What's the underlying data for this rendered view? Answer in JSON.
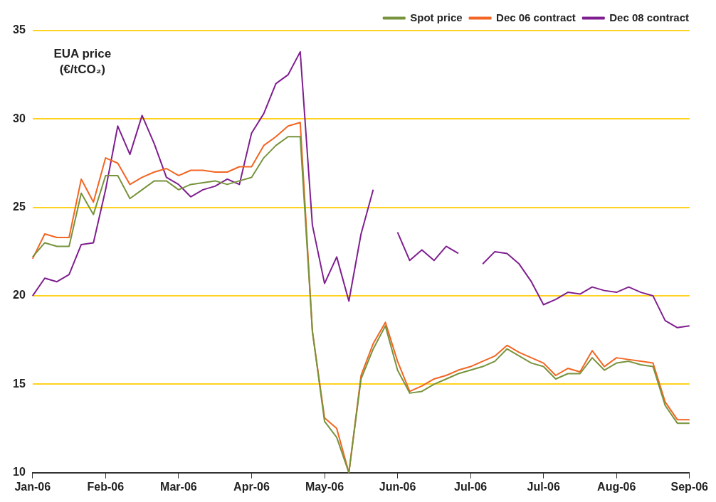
{
  "chart_data": {
    "type": "line",
    "ylabel": "EUA price (€/tCO₂)",
    "categories": [
      "Jan-06",
      null,
      null,
      null,
      null,
      null,
      "Feb-06",
      null,
      null,
      null,
      null,
      null,
      "Mar-06",
      null,
      null,
      null,
      null,
      null,
      "Apr-06",
      null,
      null,
      null,
      null,
      null,
      "May-06",
      null,
      null,
      null,
      null,
      null,
      "Jun-06",
      null,
      null,
      null,
      null,
      null,
      "Jul-06",
      null,
      null,
      null,
      null,
      null,
      "Jul-06",
      null,
      null,
      null,
      null,
      null,
      "Aug-06",
      null,
      null,
      null,
      null,
      null,
      "Sep-06"
    ],
    "series": [
      {
        "name": "Spot price",
        "color": "#77933c",
        "values": [
          22.2,
          23.0,
          22.8,
          22.8,
          25.8,
          24.6,
          26.8,
          26.8,
          25.5,
          26.0,
          26.5,
          26.5,
          26.0,
          26.3,
          26.4,
          26.5,
          26.3,
          26.5,
          26.7,
          27.8,
          28.5,
          29.0,
          29.0,
          18,
          12.9,
          12.0,
          10.0,
          15.3,
          17.0,
          18.3,
          15.8,
          14.5,
          14.6,
          15.0,
          15.3,
          15.6,
          15.8,
          16.0,
          16.3,
          17.0,
          16.6,
          16.2,
          16.0,
          15.3,
          15.6,
          15.6,
          16.5,
          15.8,
          16.2,
          16.3,
          16.1,
          16.0,
          13.8,
          12.8,
          12.8
        ]
      },
      {
        "name": "Dec 06 contract",
        "color": "#f26522",
        "values": [
          22.1,
          23.5,
          23.3,
          23.3,
          26.6,
          25.3,
          27.8,
          27.5,
          26.3,
          26.7,
          27.0,
          27.2,
          26.8,
          27.1,
          27.1,
          27.0,
          27.0,
          27.3,
          27.3,
          28.5,
          29.0,
          29.6,
          29.8,
          18,
          13.1,
          12.5,
          10.0,
          15.5,
          17.3,
          18.5,
          16.3,
          14.6,
          14.9,
          15.3,
          15.5,
          15.8,
          16.0,
          16.3,
          16.6,
          17.2,
          16.8,
          16.5,
          16.2,
          15.5,
          15.9,
          15.7,
          16.9,
          16.0,
          16.5,
          16.4,
          16.3,
          16.2,
          14.0,
          13.0,
          13.0
        ]
      },
      {
        "name": "Dec 08 contract",
        "color": "#7f1f8f",
        "values": [
          20.0,
          21.0,
          20.8,
          21.2,
          22.9,
          23.0,
          26.0,
          29.6,
          28.0,
          30.2,
          28.6,
          26.7,
          26.3,
          25.6,
          26.0,
          26.2,
          26.6,
          26.3,
          29.2,
          30.3,
          32.0,
          32.5,
          33.8,
          24.0,
          20.7,
          22.2,
          19.7,
          23.5,
          26.0,
          null,
          23.6,
          22.0,
          22.6,
          22.0,
          22.8,
          22.4,
          null,
          21.8,
          22.5,
          22.4,
          21.8,
          20.8,
          19.5,
          19.8,
          20.2,
          20.1,
          20.5,
          20.3,
          20.2,
          20.5,
          20.2,
          20.0,
          18.6,
          18.2,
          18.3
        ]
      }
    ],
    "ylim": [
      10,
      35
    ],
    "yticks": [
      10,
      15,
      20,
      25,
      30,
      35
    ],
    "grid": "y",
    "legend": "top right",
    "marker": "none",
    "line_style": "solid"
  }
}
